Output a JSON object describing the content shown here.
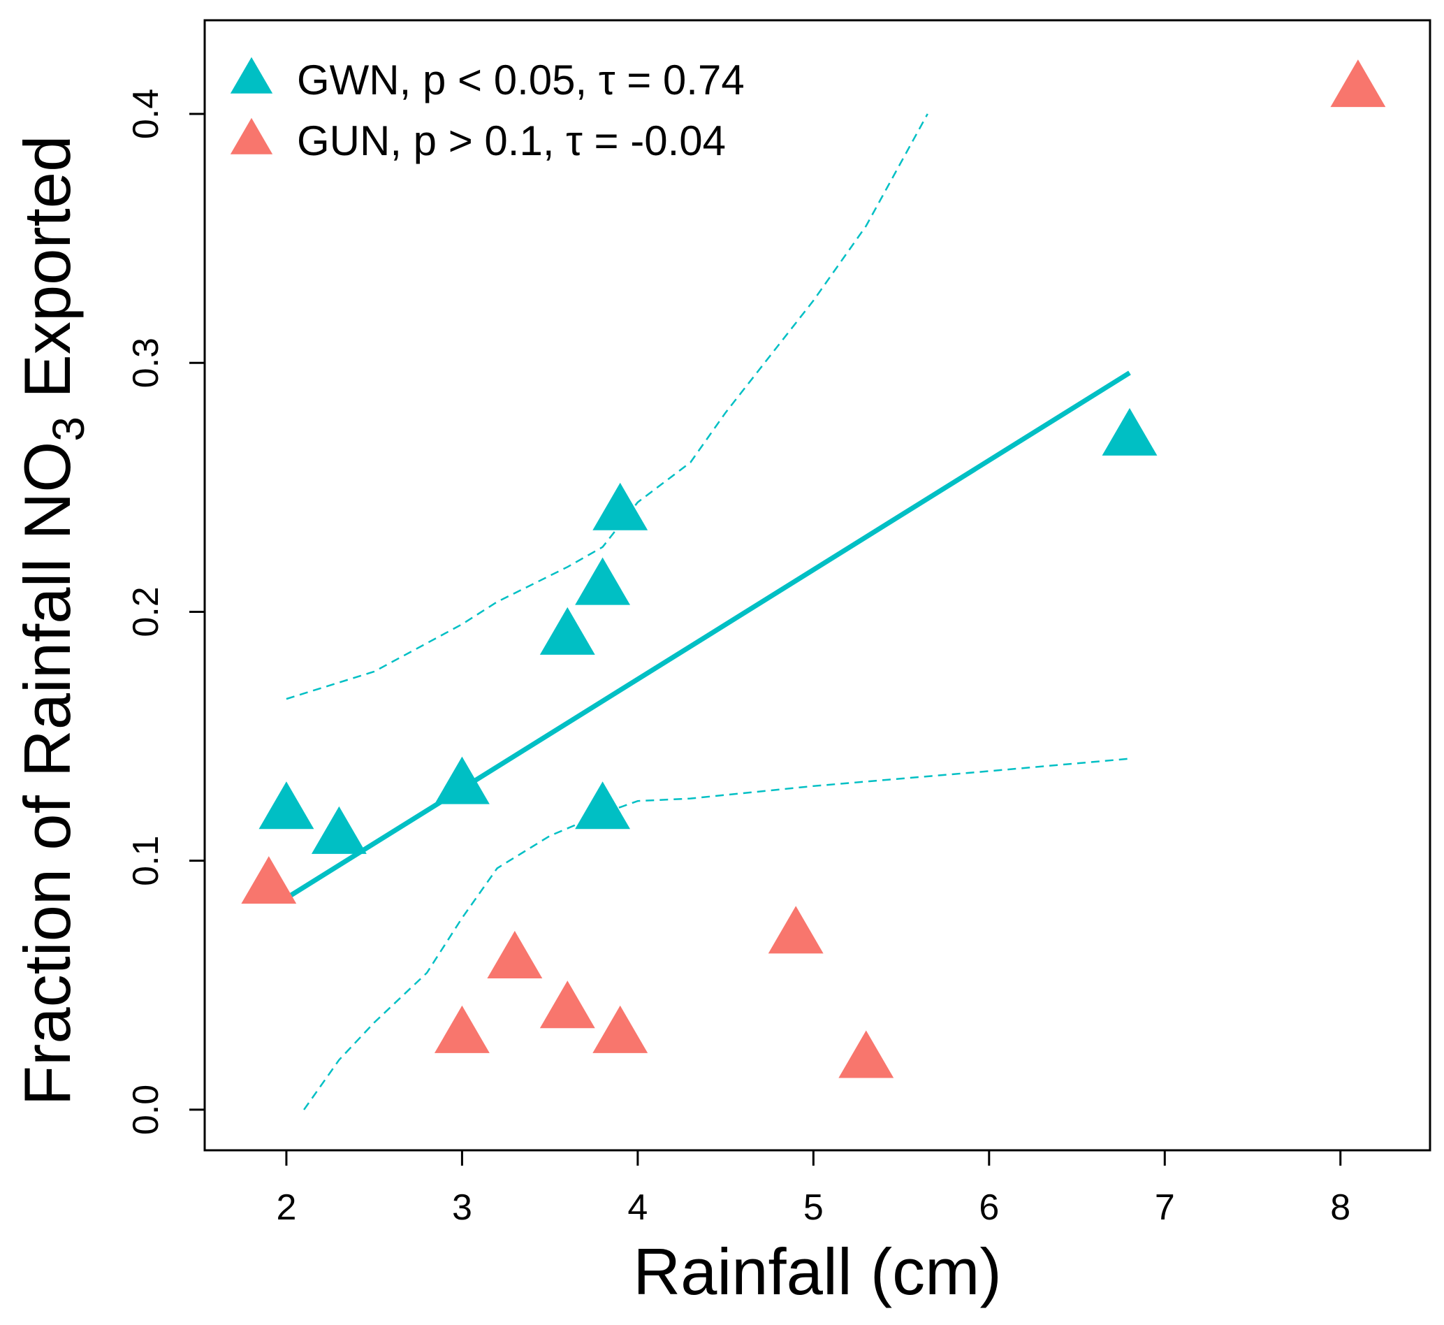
{
  "chart_data": {
    "type": "scatter",
    "title": "",
    "xlabel": "Rainfall (cm)",
    "ylabel_parts": {
      "before": "Fraction of Rainfall NO",
      "subscript": "3",
      "after": " Exported"
    },
    "xlim": [
      1.535,
      8.51
    ],
    "ylim": [
      -0.0163,
      0.4376
    ],
    "xticks": [
      2,
      3,
      4,
      5,
      6,
      7,
      8
    ],
    "xtick_labels": [
      "2",
      "3",
      "4",
      "5",
      "6",
      "7",
      "8"
    ],
    "yticks": [
      0.0,
      0.1,
      0.2,
      0.3,
      0.4
    ],
    "ytick_labels": [
      "0.0",
      "0.1",
      "0.2",
      "0.3",
      "0.4"
    ],
    "grid": false,
    "legend_placement": "top-left",
    "series": [
      {
        "name": "GWN, p < 0.05, τ = 0.74",
        "color": "#00BFC4",
        "marker": "triangle",
        "x": [
          2.0,
          2.3,
          3.0,
          3.6,
          3.8,
          3.9,
          3.8,
          6.8
        ],
        "y": [
          0.12,
          0.11,
          0.13,
          0.19,
          0.21,
          0.24,
          0.12,
          0.27
        ]
      },
      {
        "name": "GUN, p > 0.1, τ = -0.04",
        "color": "#F8766D",
        "marker": "triangle",
        "x": [
          1.9,
          3.0,
          3.3,
          3.6,
          3.9,
          4.9,
          5.3,
          8.1
        ],
        "y": [
          0.09,
          0.03,
          0.06,
          0.04,
          0.03,
          0.07,
          0.02,
          0.41
        ]
      }
    ],
    "fit_line": {
      "color": "#00BFC4",
      "x": [
        2.0,
        6.8
      ],
      "y": [
        0.085,
        0.296
      ]
    },
    "confidence_upper": {
      "color": "#00BFC4",
      "x": [
        2.0,
        2.5,
        3.0,
        3.2,
        3.6,
        3.8,
        4.0,
        4.3,
        4.5,
        5.0,
        5.3,
        5.65
      ],
      "y": [
        0.165,
        0.176,
        0.195,
        0.204,
        0.218,
        0.226,
        0.244,
        0.26,
        0.28,
        0.325,
        0.355,
        0.4
      ]
    },
    "confidence_lower": {
      "color": "#00BFC4",
      "x": [
        2.1,
        2.3,
        2.5,
        2.8,
        3.0,
        3.2,
        3.5,
        3.8,
        4.0,
        4.3,
        5.0,
        6.0,
        6.8
      ],
      "y": [
        0.0,
        0.02,
        0.035,
        0.055,
        0.077,
        0.097,
        0.11,
        0.119,
        0.124,
        0.125,
        0.13,
        0.136,
        0.141
      ]
    }
  }
}
